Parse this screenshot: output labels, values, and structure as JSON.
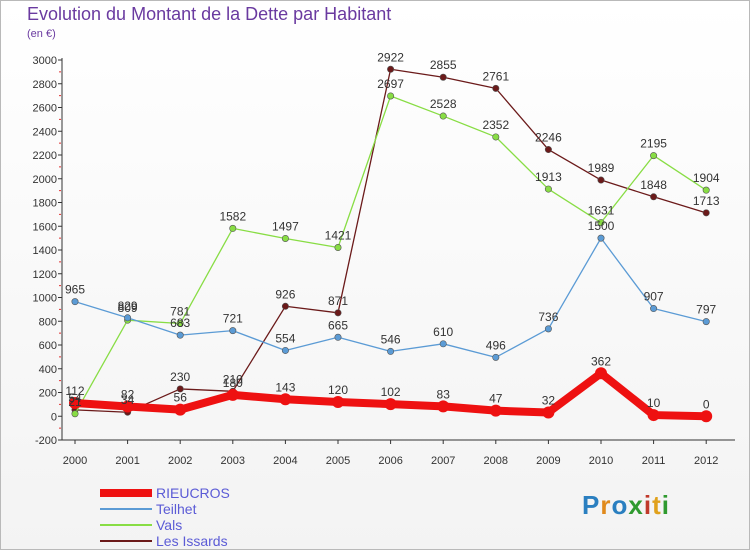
{
  "title": "Evolution du Montant de la Dette par Habitant",
  "unit_label": "(en €)",
  "logo": {
    "text": "Proxiti",
    "colors": [
      "#2a7fc0",
      "#e08a1c",
      "#2a7fc0",
      "#2f9a2f",
      "#c0392b",
      "#e0a11c",
      "#2f9a2f"
    ]
  },
  "chart_data": {
    "type": "line",
    "x": [
      "2000",
      "2001",
      "2002",
      "2003",
      "2004",
      "2005",
      "2006",
      "2007",
      "2008",
      "2009",
      "2010",
      "2011",
      "2012"
    ],
    "ylim": [
      -200,
      3000
    ],
    "yticks": [
      -200,
      0,
      200,
      400,
      600,
      800,
      1000,
      1200,
      1400,
      1600,
      1800,
      2000,
      2200,
      2400,
      2600,
      2800,
      3000
    ],
    "grid": false,
    "legend_position": "bottom-left",
    "series": [
      {
        "name": "RIEUCROS",
        "color": "#ee1111",
        "values": [
          112,
          82,
          56,
          180,
          143,
          120,
          102,
          83,
          47,
          32,
          362,
          10,
          0
        ]
      },
      {
        "name": "Teilhet",
        "color": "#5b9bd5",
        "values": [
          965,
          829,
          683,
          721,
          554,
          665,
          546,
          610,
          496,
          736,
          1500,
          907,
          797
        ]
      },
      {
        "name": "Vals",
        "color": "#88dd44",
        "values": [
          21,
          809,
          781,
          1582,
          1497,
          1421,
          2697,
          2528,
          2352,
          1913,
          1631,
          2195,
          1904
        ]
      },
      {
        "name": "Les Issards",
        "color": "#6b1a1a",
        "values": [
          54,
          34,
          230,
          210,
          926,
          871,
          2922,
          2855,
          2761,
          2246,
          1989,
          1848,
          1713
        ]
      }
    ]
  }
}
